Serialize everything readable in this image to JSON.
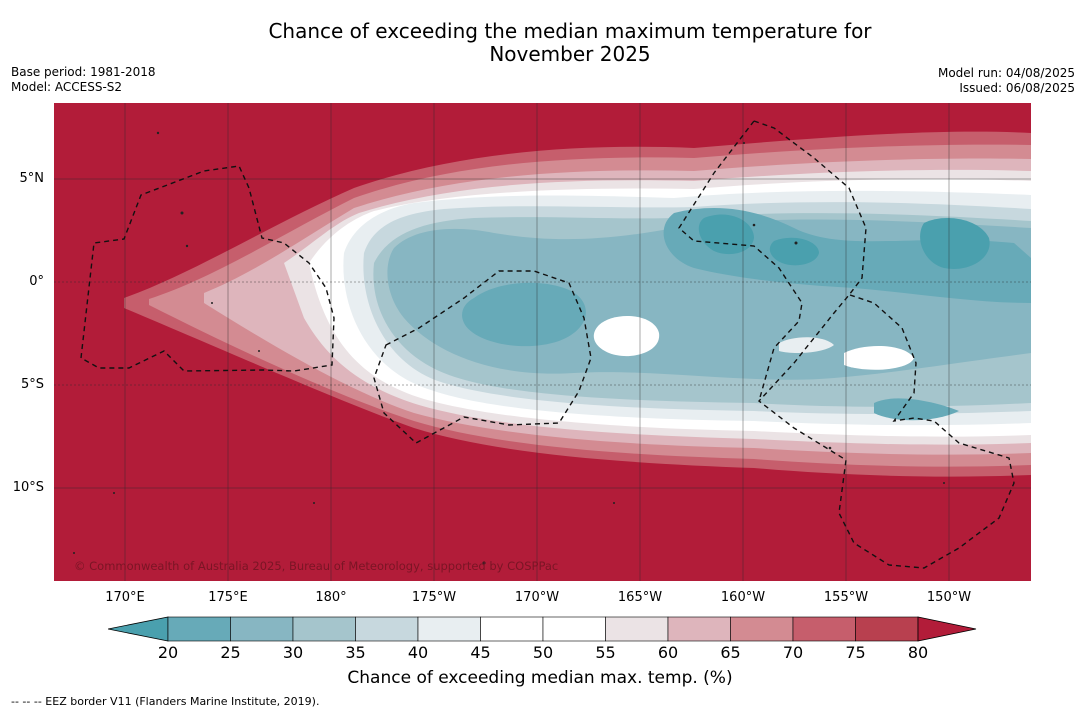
{
  "title": "Chance of exceeding the median maximum temperature for\nNovember 2025",
  "meta": {
    "base_period": "Base period: 1981-2018",
    "model": "Model: ACCESS-S2",
    "model_run": "Model run: 04/08/2025",
    "issued": "Issued: 06/08/2025"
  },
  "map": {
    "lat_labels": [
      "5°N",
      "0°",
      "5°S",
      "10°S"
    ],
    "lon_labels": [
      "170°E",
      "175°E",
      "180°",
      "175°W",
      "170°W",
      "165°W",
      "160°W",
      "155°W",
      "150°W"
    ],
    "copyright": "© Commonwealth of Australia 2025, Bureau of Meteorology, supported by COSPPac"
  },
  "colorbar": {
    "ticks": [
      "20",
      "25",
      "30",
      "35",
      "40",
      "45",
      "50",
      "55",
      "60",
      "65",
      "70",
      "75",
      "80"
    ],
    "colors": [
      "#4aa0ae",
      "#67aab8",
      "#87b6c2",
      "#a5c5cc",
      "#c7d8de",
      "#e8eef1",
      "#ffffff",
      "#ffffff",
      "#ebe3e5",
      "#deb5bc",
      "#d38b92",
      "#c65e6c",
      "#b8404f",
      "#b21c39"
    ],
    "label": "Chance of exceeding median max. temp. (%)"
  },
  "footer": "--  --  -- EEZ border V11 (Flanders Marine Institute, 2019)."
}
